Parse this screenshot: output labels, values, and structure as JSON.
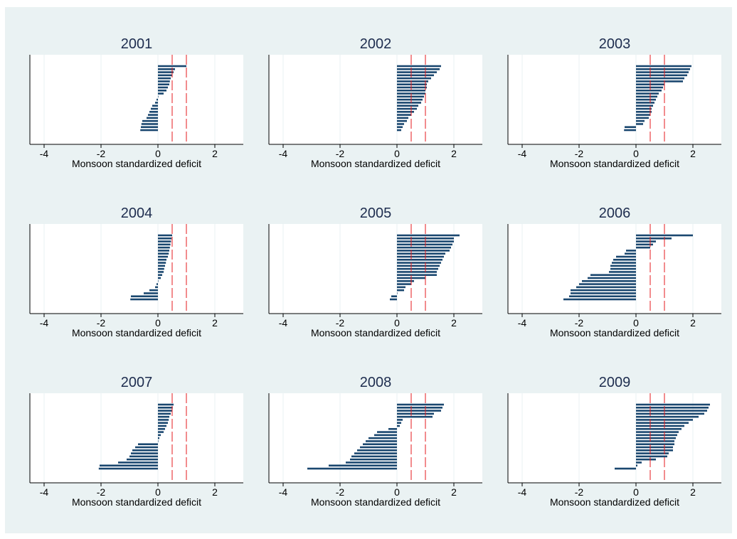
{
  "colors": {
    "outer_background": "#ffffff",
    "graph_region": "#eaf2f3",
    "plot_region": "#ffffff",
    "bar": "#1a476f",
    "reference_line": "#e41a1c",
    "grid": "#eaf2f3",
    "title": "#1e2d4f"
  },
  "chart_data": [
    {
      "type": "bar",
      "orientation": "horizontal",
      "title": "2001",
      "xlabel": "Monsoon standardized deficit",
      "xlim": [
        -4.5,
        3.0
      ],
      "xticks": [
        -4,
        -2,
        0,
        2
      ],
      "reference_lines": [
        0.5,
        1.0
      ],
      "grid": true,
      "values": [
        1.0,
        0.6,
        0.55,
        0.5,
        0.45,
        0.42,
        0.4,
        0.35,
        0.3,
        0.2,
        0.0,
        -0.05,
        -0.1,
        -0.2,
        -0.25,
        -0.3,
        -0.35,
        -0.4,
        -0.55,
        -0.58,
        -0.6,
        -0.62
      ]
    },
    {
      "type": "bar",
      "orientation": "horizontal",
      "title": "2002",
      "xlabel": "Monsoon standardized deficit",
      "xlim": [
        -4.5,
        3.0
      ],
      "xticks": [
        -4,
        -2,
        0,
        2
      ],
      "reference_lines": [
        0.5,
        1.0
      ],
      "grid": true,
      "values": [
        1.55,
        1.5,
        1.4,
        1.3,
        1.2,
        1.1,
        1.05,
        1.05,
        1.0,
        1.0,
        0.95,
        0.9,
        0.85,
        0.75,
        0.7,
        0.6,
        0.5,
        0.4,
        0.35,
        0.25,
        0.2,
        0.15
      ]
    },
    {
      "type": "bar",
      "orientation": "horizontal",
      "title": "2003",
      "xlabel": "Monsoon standardized deficit",
      "xlim": [
        -4.5,
        3.0
      ],
      "xticks": [
        -4,
        -2,
        0,
        2
      ],
      "reference_lines": [
        0.5,
        1.0
      ],
      "grid": true,
      "values": [
        1.95,
        1.9,
        1.85,
        1.8,
        1.7,
        1.65,
        1.0,
        0.95,
        0.9,
        0.8,
        0.75,
        0.7,
        0.65,
        0.6,
        0.55,
        0.55,
        0.5,
        0.45,
        0.3,
        0.25,
        -0.4,
        -0.42
      ]
    },
    {
      "type": "bar",
      "orientation": "horizontal",
      "title": "2004",
      "xlabel": "Monsoon standardized deficit",
      "xlim": [
        -4.5,
        3.0
      ],
      "xticks": [
        -4,
        -2,
        0,
        2
      ],
      "reference_lines": [
        0.5,
        1.0
      ],
      "grid": true,
      "values": [
        0.5,
        0.48,
        0.46,
        0.44,
        0.42,
        0.4,
        0.38,
        0.35,
        0.3,
        0.28,
        0.25,
        0.22,
        0.2,
        0.15,
        0.1,
        0.0,
        -0.05,
        -0.1,
        -0.3,
        -0.5,
        -0.95,
        -0.97
      ]
    },
    {
      "type": "bar",
      "orientation": "horizontal",
      "title": "2005",
      "xlabel": "Monsoon standardized deficit",
      "xlim": [
        -4.5,
        3.0
      ],
      "xticks": [
        -4,
        -2,
        0,
        2
      ],
      "reference_lines": [
        0.5,
        1.0
      ],
      "grid": true,
      "values": [
        2.2,
        2.0,
        2.0,
        1.95,
        1.9,
        1.85,
        1.7,
        1.65,
        1.6,
        1.55,
        1.5,
        1.45,
        1.4,
        1.4,
        1.0,
        0.6,
        0.5,
        0.3,
        0.25,
        0.0,
        -0.2,
        -0.25
      ]
    },
    {
      "type": "bar",
      "orientation": "horizontal",
      "title": "2006",
      "xlabel": "Monsoon standardized deficit",
      "xlim": [
        -4.5,
        3.0
      ],
      "xticks": [
        -4,
        -2,
        0,
        2
      ],
      "reference_lines": [
        0.5,
        1.0
      ],
      "grid": true,
      "values": [
        2.0,
        1.25,
        0.7,
        0.6,
        0.5,
        -0.35,
        -0.4,
        -0.7,
        -0.8,
        -0.85,
        -0.9,
        -0.9,
        -0.95,
        -1.6,
        -1.7,
        -1.9,
        -2.0,
        -2.1,
        -2.3,
        -2.3,
        -2.35,
        -2.55
      ]
    },
    {
      "type": "bar",
      "orientation": "horizontal",
      "title": "2007",
      "xlabel": "Monsoon standardized deficit",
      "xlim": [
        -4.5,
        3.0
      ],
      "xticks": [
        -4,
        -2,
        0,
        2
      ],
      "reference_lines": [
        0.5,
        1.0
      ],
      "grid": true,
      "values": [
        0.55,
        0.52,
        0.5,
        0.45,
        0.4,
        0.38,
        0.35,
        0.3,
        0.25,
        0.2,
        0.1,
        0.05,
        0.0,
        -0.7,
        -0.8,
        -0.9,
        -0.95,
        -1.0,
        -1.1,
        -1.4,
        -2.05,
        -2.08
      ]
    },
    {
      "type": "bar",
      "orientation": "horizontal",
      "title": "2008",
      "xlabel": "Monsoon standardized deficit",
      "xlim": [
        -4.5,
        3.0
      ],
      "xticks": [
        -4,
        -2,
        0,
        2
      ],
      "reference_lines": [
        0.5,
        1.0
      ],
      "grid": true,
      "values": [
        1.65,
        1.6,
        1.55,
        1.3,
        1.25,
        0.2,
        0.15,
        0.1,
        -0.3,
        -0.7,
        -0.8,
        -1.0,
        -1.1,
        -1.2,
        -1.3,
        -1.4,
        -1.5,
        -1.6,
        -1.65,
        -1.8,
        -2.4,
        -3.15
      ]
    },
    {
      "type": "bar",
      "orientation": "horizontal",
      "title": "2009",
      "xlabel": "Monsoon standardized deficit",
      "xlim": [
        -4.5,
        3.0
      ],
      "xticks": [
        -4,
        -2,
        0,
        2
      ],
      "reference_lines": [
        0.5,
        1.0
      ],
      "grid": true,
      "values": [
        2.6,
        2.55,
        2.5,
        2.4,
        2.2,
        2.0,
        1.85,
        1.7,
        1.6,
        1.5,
        1.45,
        1.4,
        1.35,
        1.35,
        1.3,
        1.3,
        1.15,
        1.1,
        0.7,
        0.2,
        0.05,
        -0.75
      ]
    }
  ]
}
